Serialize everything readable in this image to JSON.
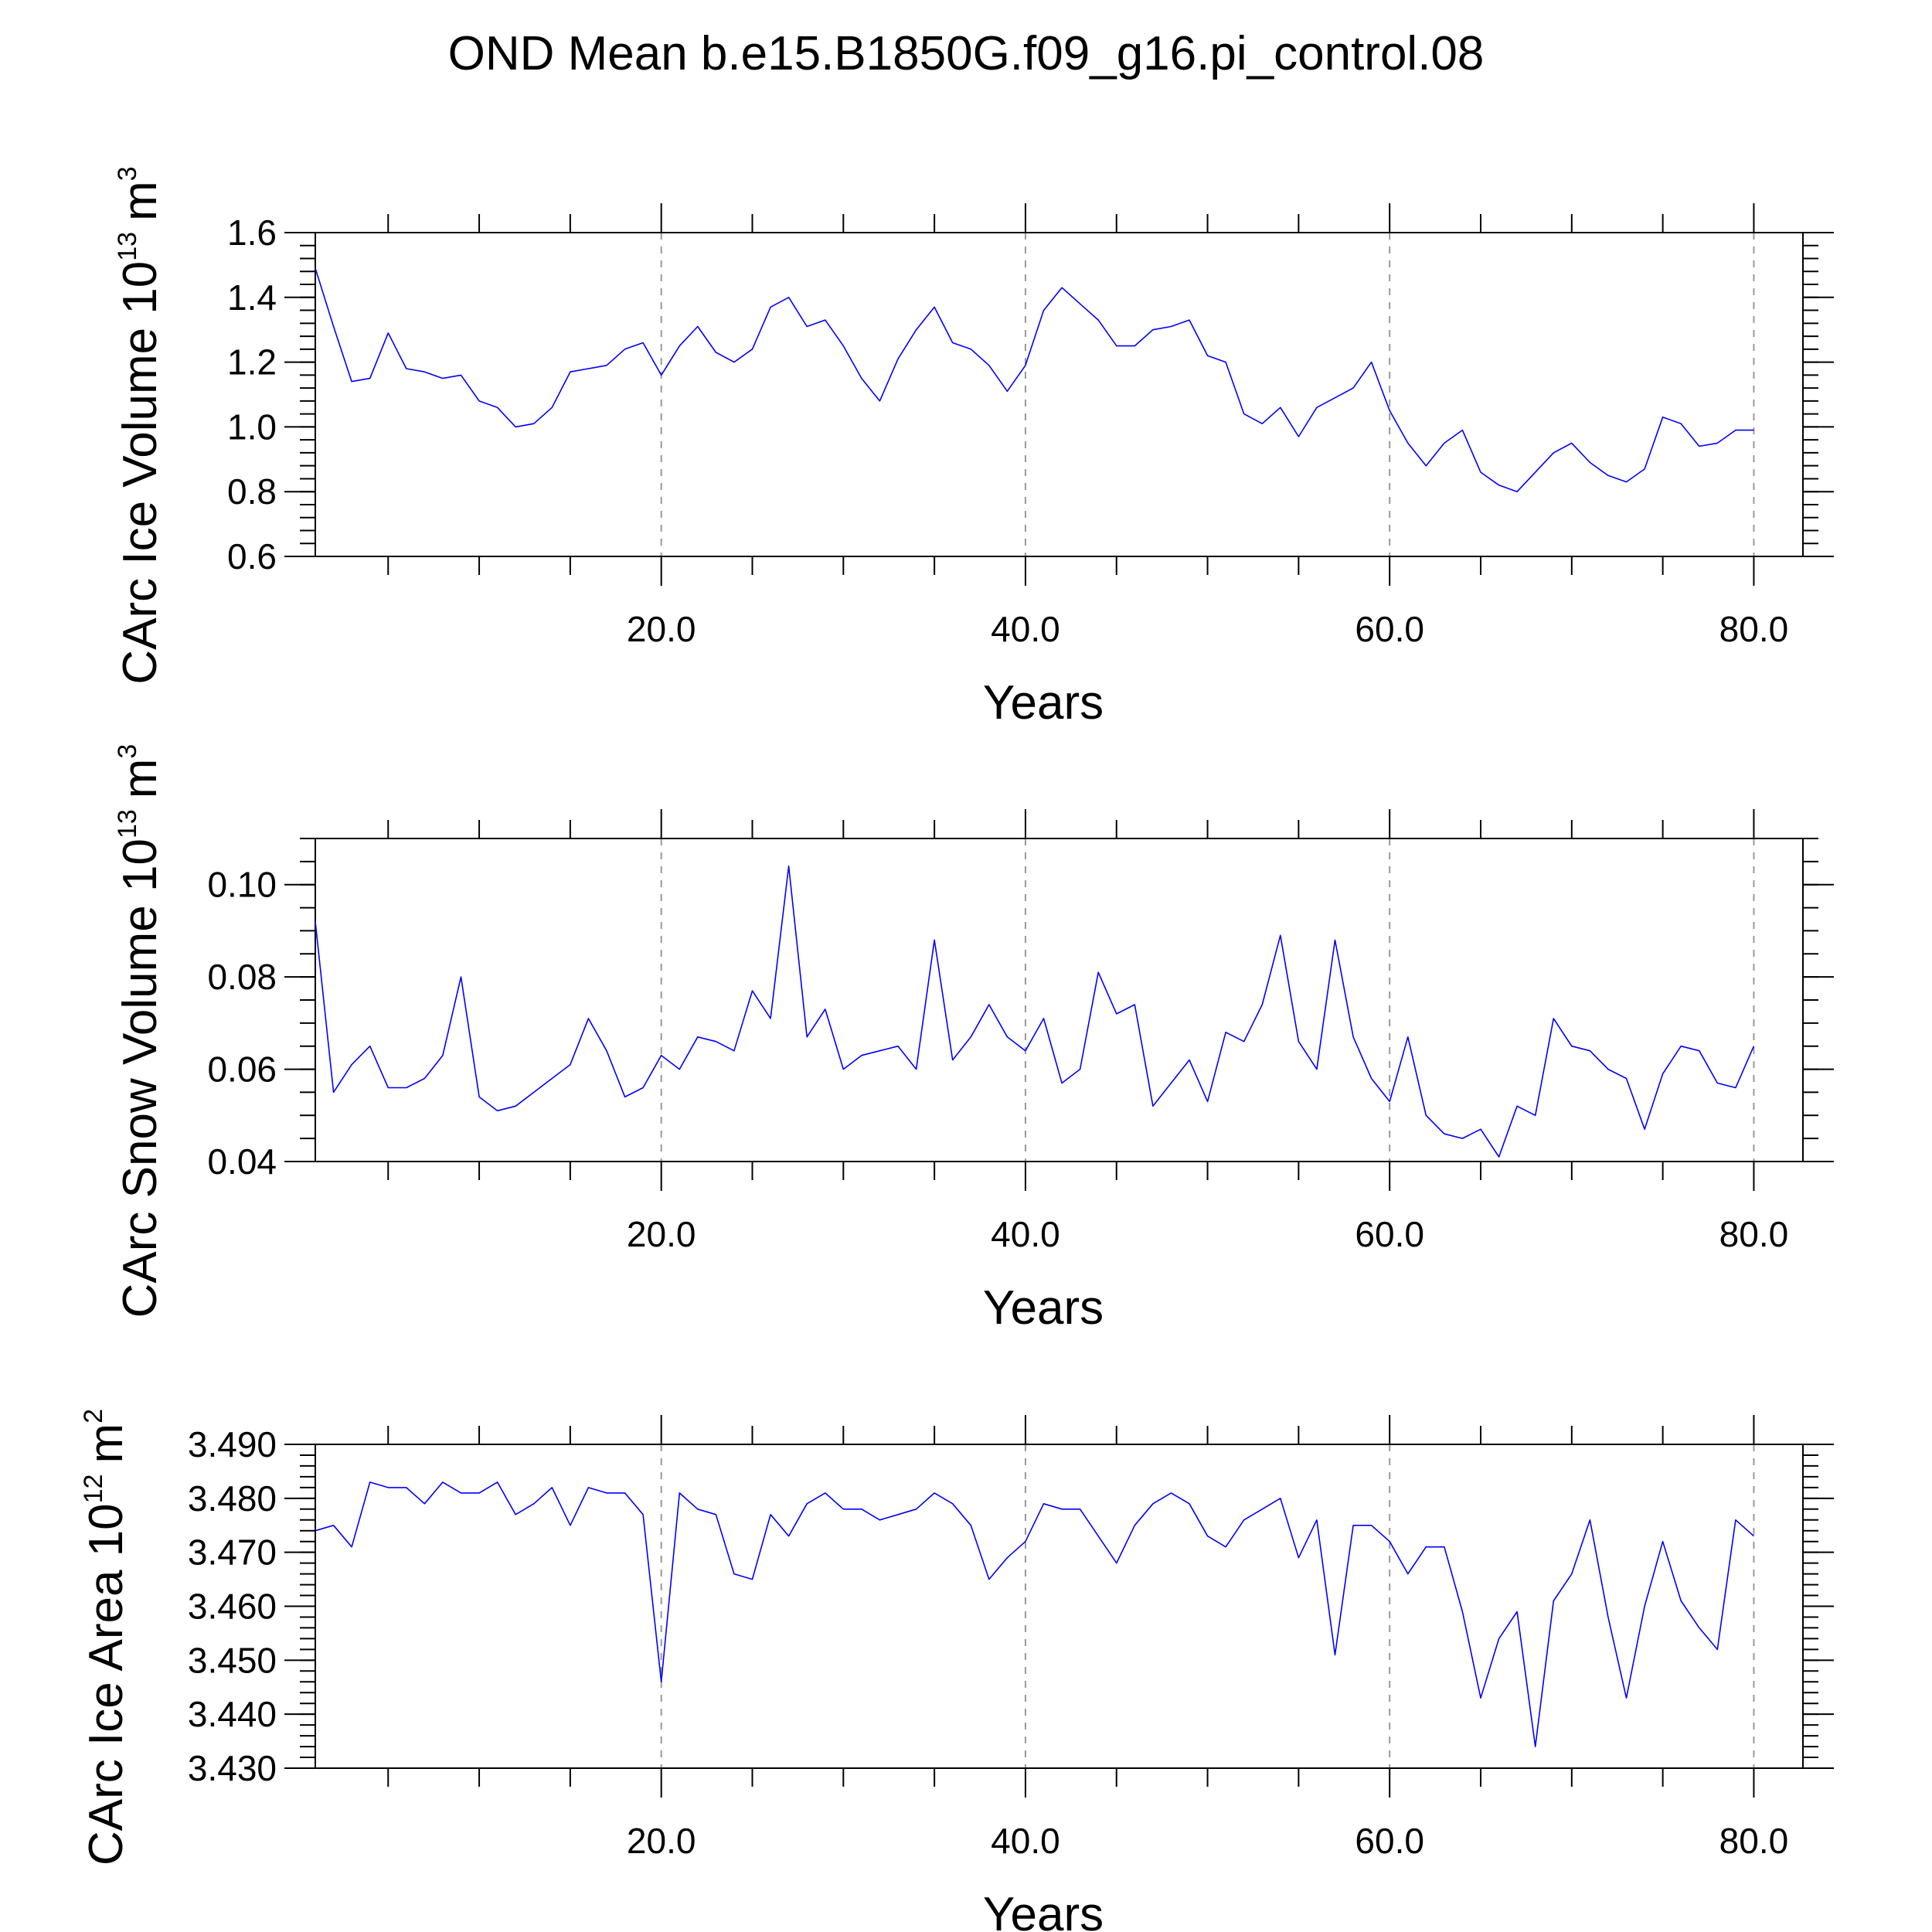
{
  "title": "OND Mean b.e15.B1850G.f09_g16.pi_control.08",
  "chart_data": [
    {
      "type": "line",
      "ylabel": "CArc Ice Volume 10",
      "ylabel_exponent": "13",
      "ylabel_unit": "m",
      "ylabel_unit_exponent": "3",
      "xlabel": "Years",
      "xlim": [
        1,
        81
      ],
      "ylim": [
        0.6,
        1.6
      ],
      "xticks": [
        20,
        40,
        60,
        80
      ],
      "xtick_labels": [
        "20.0",
        "40.0",
        "60.0",
        "80.0"
      ],
      "yticks": [
        0.6,
        0.8,
        1.0,
        1.2,
        1.4,
        1.6
      ],
      "ytick_labels": [
        "0.6",
        "0.8",
        "1.0",
        "1.2",
        "1.4",
        "1.6"
      ],
      "y_minor_step": 0.04,
      "grid_x": true,
      "line_color": "#0000ff",
      "series": [
        {
          "values": [
            1.49,
            1.31,
            1.14,
            1.15,
            1.29,
            1.18,
            1.17,
            1.15,
            1.16,
            1.08,
            1.06,
            1.0,
            1.01,
            1.06,
            1.17,
            1.18,
            1.19,
            1.24,
            1.26,
            1.16,
            1.25,
            1.31,
            1.23,
            1.2,
            1.24,
            1.37,
            1.4,
            1.31,
            1.33,
            1.25,
            1.15,
            1.08,
            1.21,
            1.3,
            1.37,
            1.26,
            1.24,
            1.19,
            1.11,
            1.19,
            1.36,
            1.43,
            1.38,
            1.33,
            1.25,
            1.25,
            1.3,
            1.31,
            1.33,
            1.22,
            1.2,
            1.04,
            1.01,
            1.06,
            0.97,
            1.06,
            1.09,
            1.12,
            1.2,
            1.05,
            0.95,
            0.88,
            0.95,
            0.99,
            0.86,
            0.82,
            0.8,
            0.86,
            0.92,
            0.95,
            0.89,
            0.85,
            0.83,
            0.87,
            1.03,
            1.01,
            0.94,
            0.95,
            0.99,
            0.99
          ]
        }
      ]
    },
    {
      "type": "line",
      "ylabel": "CArc Snow Volume 10",
      "ylabel_exponent": "13",
      "ylabel_unit": "m",
      "ylabel_unit_exponent": "3",
      "xlabel": "Years",
      "xlim": [
        1,
        81
      ],
      "ylim": [
        0.04,
        0.11
      ],
      "xticks": [
        20,
        40,
        60,
        80
      ],
      "xtick_labels": [
        "20.0",
        "40.0",
        "60.0",
        "80.0"
      ],
      "yticks": [
        0.04,
        0.06,
        0.08,
        0.1
      ],
      "ytick_labels": [
        "0.04",
        "0.06",
        "0.08",
        "0.10"
      ],
      "y_minor_step": 0.005,
      "grid_x": true,
      "line_color": "#0000ff",
      "series": [
        {
          "values": [
            0.092,
            0.055,
            0.061,
            0.065,
            0.056,
            0.056,
            0.058,
            0.063,
            0.08,
            0.054,
            0.051,
            0.052,
            0.055,
            0.058,
            0.061,
            0.071,
            0.064,
            0.054,
            0.056,
            0.063,
            0.06,
            0.067,
            0.066,
            0.064,
            0.077,
            0.071,
            0.104,
            0.067,
            0.073,
            0.06,
            0.063,
            0.064,
            0.065,
            0.06,
            0.088,
            0.062,
            0.067,
            0.074,
            0.067,
            0.064,
            0.071,
            0.057,
            0.06,
            0.081,
            0.072,
            0.074,
            0.052,
            0.057,
            0.062,
            0.053,
            0.068,
            0.066,
            0.074,
            0.089,
            0.066,
            0.06,
            0.088,
            0.067,
            0.058,
            0.053,
            0.067,
            0.05,
            0.046,
            0.045,
            0.047,
            0.041,
            0.052,
            0.05,
            0.071,
            0.065,
            0.064,
            0.06,
            0.058,
            0.047,
            0.059,
            0.065,
            0.064,
            0.057,
            0.056,
            0.065
          ]
        }
      ]
    },
    {
      "type": "line",
      "ylabel": "CArc Ice Area 10",
      "ylabel_exponent": "12",
      "ylabel_unit": "m",
      "ylabel_unit_exponent": "2",
      "xlabel": "Years",
      "xlim": [
        1,
        81
      ],
      "ylim": [
        3.43,
        3.49
      ],
      "xticks": [
        20,
        40,
        60,
        80
      ],
      "xtick_labels": [
        "20.0",
        "40.0",
        "60.0",
        "80.0"
      ],
      "yticks": [
        3.43,
        3.44,
        3.45,
        3.46,
        3.47,
        3.48,
        3.49
      ],
      "ytick_labels": [
        "3.430",
        "3.440",
        "3.450",
        "3.460",
        "3.470",
        "3.480",
        "3.490"
      ],
      "y_minor_step": 0.002,
      "grid_x": true,
      "line_color": "#0000ff",
      "series": [
        {
          "values": [
            3.474,
            3.475,
            3.471,
            3.483,
            3.482,
            3.482,
            3.479,
            3.483,
            3.481,
            3.481,
            3.483,
            3.477,
            3.479,
            3.482,
            3.475,
            3.482,
            3.481,
            3.481,
            3.477,
            3.446,
            3.481,
            3.478,
            3.477,
            3.466,
            3.465,
            3.477,
            3.473,
            3.479,
            3.481,
            3.478,
            3.478,
            3.476,
            3.477,
            3.478,
            3.481,
            3.479,
            3.475,
            3.465,
            3.469,
            3.472,
            3.479,
            3.478,
            3.478,
            3.473,
            3.468,
            3.475,
            3.479,
            3.481,
            3.479,
            3.473,
            3.471,
            3.476,
            3.478,
            3.48,
            3.469,
            3.476,
            3.451,
            3.475,
            3.475,
            3.472,
            3.466,
            3.471,
            3.471,
            3.459,
            3.443,
            3.454,
            3.459,
            3.434,
            3.461,
            3.466,
            3.476,
            3.458,
            3.443,
            3.46,
            3.472,
            3.461,
            3.456,
            3.452,
            3.476,
            3.473
          ]
        }
      ]
    }
  ]
}
